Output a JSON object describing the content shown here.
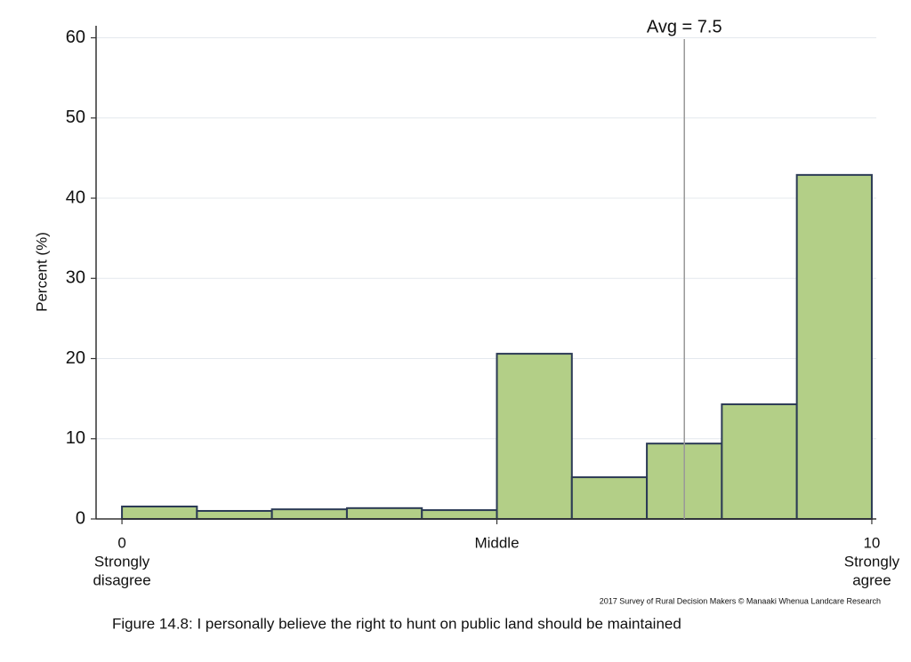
{
  "chart_data": {
    "type": "histogram",
    "y_label": "Percent (%)",
    "bins": [
      0,
      1,
      2,
      3,
      4,
      5,
      6,
      7,
      8,
      9,
      10
    ],
    "values": [
      1.55,
      1.0,
      1.2,
      1.35,
      1.1,
      20.6,
      5.2,
      9.4,
      14.3,
      42.9
    ],
    "color": "#b3cf87",
    "edge_color": "#2b3a55",
    "xlim": [
      -0.345,
      10.06
    ],
    "ylim": [
      0,
      61.5
    ],
    "xticks": [
      0,
      {
        "value": 5,
        "label": "Middle"
      },
      10
    ],
    "yticks": [
      0,
      10,
      20,
      30,
      40,
      50,
      60
    ],
    "grid": true,
    "axis_end_labels": {
      "left": [
        "Strongly",
        "disagree"
      ],
      "right": [
        "Strongly",
        "agree"
      ]
    },
    "reference_line": {
      "value": 7.5,
      "label": "Avg = 7.5"
    },
    "source": "2017 Survey of Rural Decision Makers © Manaaki Whenua Landcare Research",
    "caption": "Figure 14.8: I personally believe the right to hunt on public land should be maintained"
  }
}
